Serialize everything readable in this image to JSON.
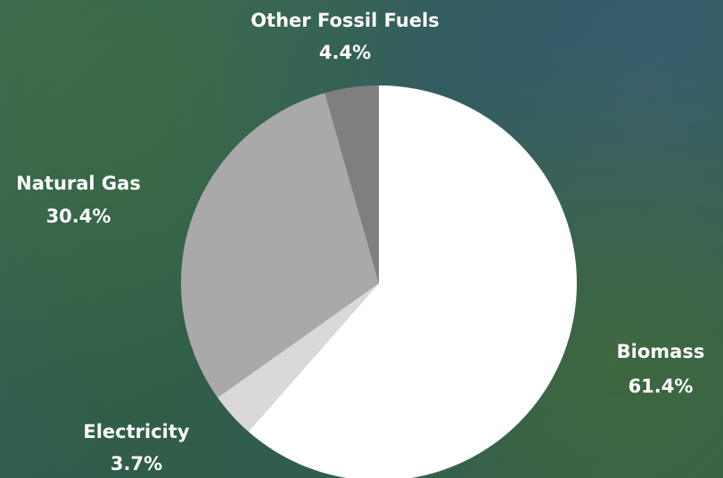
{
  "chart_data": {
    "type": "pie",
    "categories": [
      "Biomass",
      "Electricity",
      "Natural Gas",
      "Other Fossil Fuels"
    ],
    "values": [
      61.4,
      3.7,
      30.4,
      4.4
    ],
    "value_labels": [
      "61.4%",
      "3.7%",
      "30.4%",
      "4.4%"
    ],
    "colors": [
      "#ffffff",
      "#d9d9d9",
      "#a9a9a9",
      "#7f7f7f"
    ]
  }
}
